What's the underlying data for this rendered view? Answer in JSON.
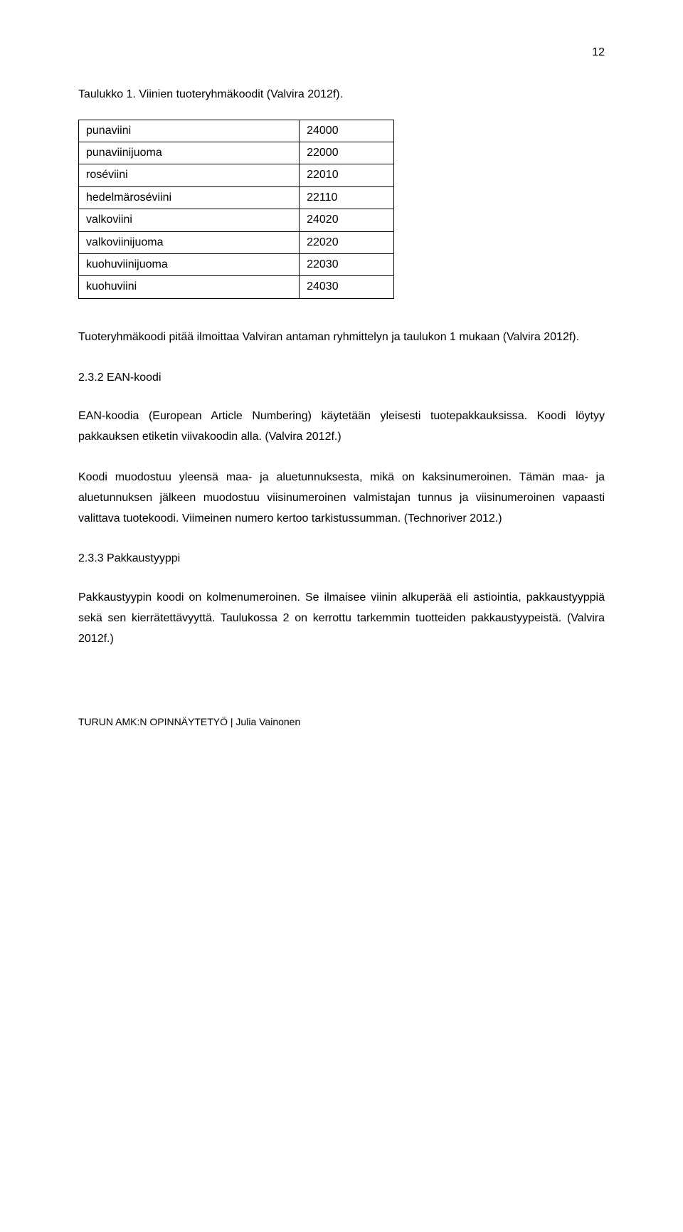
{
  "page_number": "12",
  "caption": "Taulukko 1. Viinien tuoteryhmäkoodit (Valvira 2012f).",
  "table": {
    "rows": [
      [
        "punaviini",
        "24000"
      ],
      [
        "punaviinijuoma",
        "22000"
      ],
      [
        "roséviini",
        "22010"
      ],
      [
        "hedelmäroséviini",
        "22110"
      ],
      [
        "valkoviini",
        "24020"
      ],
      [
        "valkoviinijuoma",
        "22020"
      ],
      [
        "kuohuviinijuoma",
        "22030"
      ],
      [
        "kuohuviini",
        "24030"
      ]
    ]
  },
  "para1": "Tuoteryhmäkoodi pitää ilmoittaa Valviran antaman ryhmittelyn ja taulukon 1 mukaan (Valvira 2012f).",
  "heading232": "2.3.2 EAN-koodi",
  "para2": "EAN-koodia (European Article Numbering) käytetään yleisesti tuotepakkauksissa. Koodi löytyy pakkauksen etiketin viivakoodin alla. (Valvira 2012f.)",
  "para3": "Koodi muodostuu yleensä maa- ja aluetunnuksesta, mikä on kaksinumeroinen. Tämän maa- ja aluetunnuksen jälkeen muodostuu viisinumeroinen valmistajan tunnus ja viisinumeroinen vapaasti valittava tuotekoodi. Viimeinen numero kertoo tarkistussumman. (Technoriver 2012.)",
  "heading233": "2.3.3 Pakkaustyyppi",
  "para4": "Pakkaustyypin koodi on kolmenumeroinen. Se ilmaisee viinin alkuperää eli astiointia, pakkaustyyppiä sekä sen kierrätettävyyttä. Taulukossa 2 on kerrottu tarkemmin tuotteiden pakkaustyypeistä. (Valvira 2012f.)",
  "footer": "TURUN AMK:N OPINNÄYTETYÖ | Julia Vainonen"
}
